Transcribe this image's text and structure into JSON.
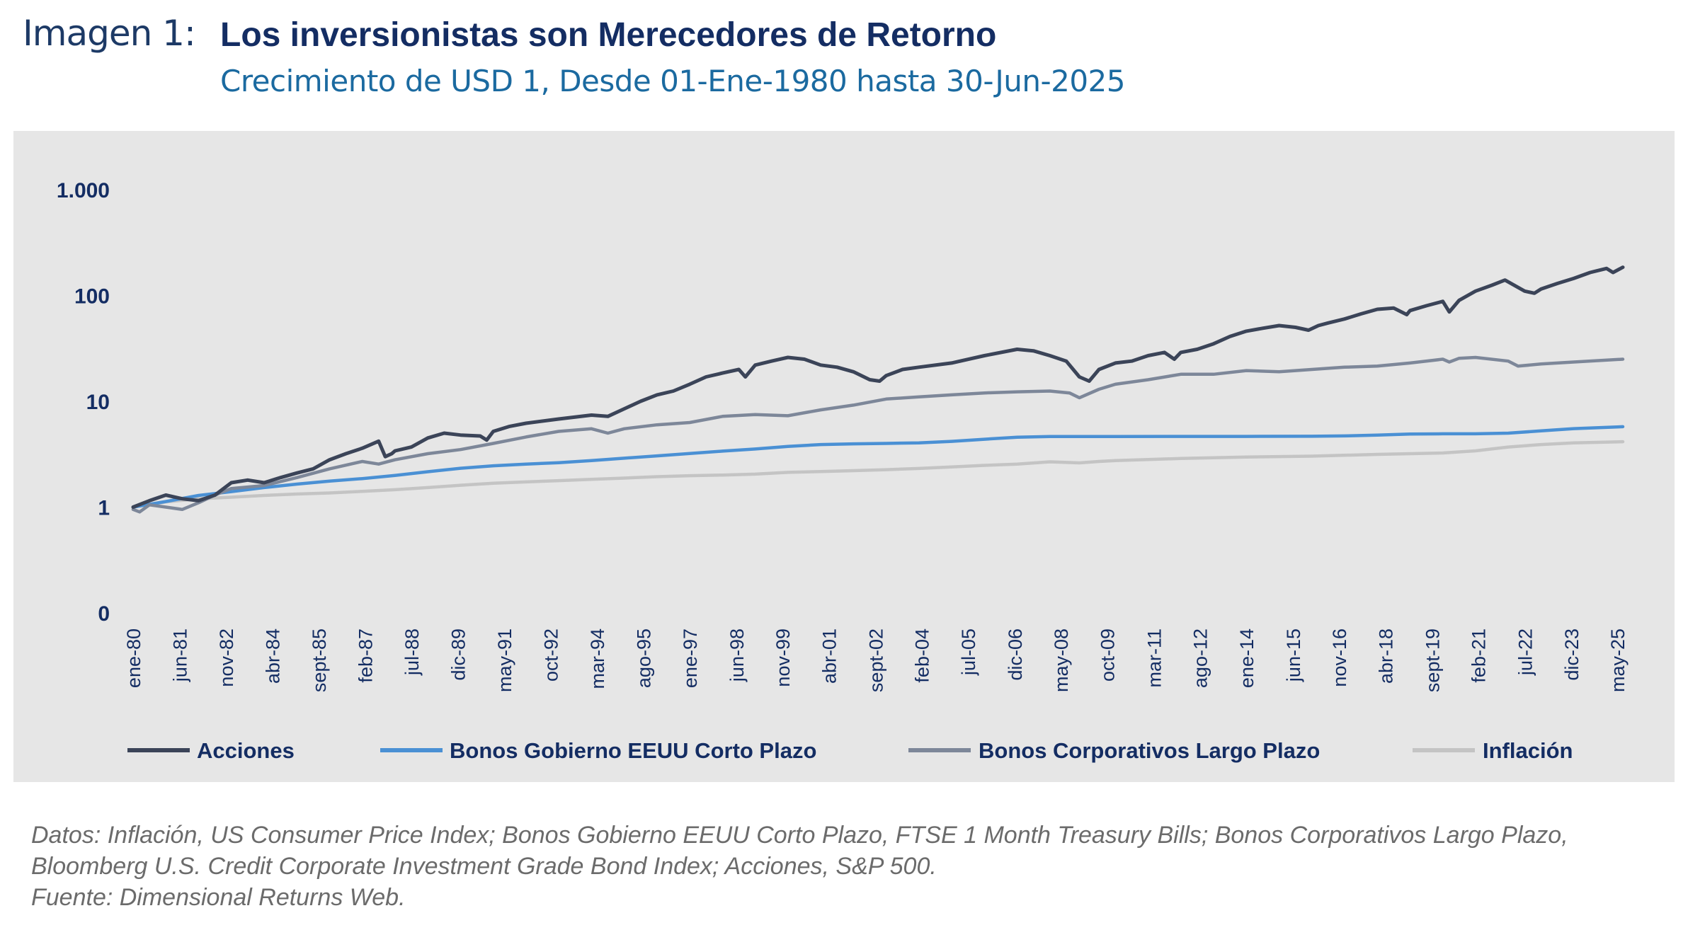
{
  "header": {
    "label": "Imagen 1:",
    "title": "Los inversionistas son Merecedores de Retorno",
    "subtitle": "Crecimiento de USD 1, Desde 01-Ene-1980 hasta 30-Jun-2025"
  },
  "source": {
    "line1": "Datos: Inflación, US Consumer Price Index; Bonos Gobierno EEUU Corto Plazo, FTSE 1 Month Treasury Bills; Bonos Corporativos Largo Plazo, Bloomberg U.S. Credit Corporate Investment Grade Bond Index; Acciones, S&P 500.",
    "line2": "Fuente: Dimensional Returns Web."
  },
  "colors": {
    "panel_background": "#e6e6e6",
    "axis_text": "#142d63"
  },
  "chart_data": {
    "type": "line",
    "title": "",
    "xlabel": "",
    "ylabel": "",
    "yscale": "log",
    "ylim": [
      0.1,
      1000
    ],
    "y_tick_values": [
      0.1,
      1,
      10,
      100,
      1000
    ],
    "y_tick_labels": [
      "0",
      "1",
      "10",
      "100",
      "1.000"
    ],
    "x_range": [
      1980.0,
      2025.5
    ],
    "x_tick_labels": [
      "ene-80",
      "jun-81",
      "nov-82",
      "abr-84",
      "sept-85",
      "feb-87",
      "jul-88",
      "dic-89",
      "may-91",
      "oct-92",
      "mar-94",
      "ago-95",
      "ene-97",
      "jun-98",
      "nov-99",
      "abr-01",
      "sept-02",
      "feb-04",
      "jul-05",
      "dic-06",
      "may-08",
      "oct-09",
      "mar-11",
      "ago-12",
      "ene-14",
      "jun-15",
      "nov-16",
      "abr-18",
      "sept-19",
      "feb-21",
      "jul-22",
      "dic-23",
      "may-25"
    ],
    "x_tick_values": [
      1980.0,
      1981.42,
      1982.83,
      1984.25,
      1985.67,
      1987.08,
      1988.5,
      1989.92,
      1991.33,
      1992.75,
      1994.17,
      1995.58,
      1997.0,
      1998.42,
      1999.83,
      2001.25,
      2002.67,
      2004.08,
      2005.5,
      2006.92,
      2008.33,
      2009.75,
      2011.17,
      2012.58,
      2014.0,
      2015.42,
      2016.83,
      2018.25,
      2019.67,
      2021.08,
      2022.5,
      2023.92,
      2025.33
    ],
    "grid": false,
    "legend_position": "bottom",
    "series": [
      {
        "name": "Acciones",
        "color": "#3b4458",
        "x": [
          1980.0,
          1980.5,
          1981.0,
          1981.5,
          1982.0,
          1982.5,
          1983.0,
          1983.5,
          1984.0,
          1984.5,
          1985.0,
          1985.5,
          1986.0,
          1986.5,
          1987.0,
          1987.5,
          1987.7,
          1987.9,
          1988.0,
          1988.5,
          1989.0,
          1989.5,
          1990.0,
          1990.6,
          1990.8,
          1991.0,
          1991.5,
          1992.0,
          1993.0,
          1994.0,
          1994.5,
          1995.0,
          1995.5,
          1996.0,
          1996.5,
          1997.0,
          1997.5,
          1998.0,
          1998.5,
          1998.7,
          1999.0,
          1999.5,
          2000.0,
          2000.5,
          2001.0,
          2001.5,
          2002.0,
          2002.5,
          2002.8,
          2003.0,
          2003.5,
          2004.0,
          2005.0,
          2006.0,
          2007.0,
          2007.5,
          2008.0,
          2008.5,
          2008.9,
          2009.2,
          2009.5,
          2010.0,
          2010.5,
          2011.0,
          2011.5,
          2011.8,
          2012.0,
          2012.5,
          2013.0,
          2013.5,
          2014.0,
          2014.5,
          2015.0,
          2015.5,
          2015.9,
          2016.2,
          2016.5,
          2017.0,
          2017.5,
          2018.0,
          2018.5,
          2018.9,
          2019.0,
          2019.5,
          2020.0,
          2020.2,
          2020.5,
          2021.0,
          2021.5,
          2021.9,
          2022.5,
          2022.8,
          2023.0,
          2023.5,
          2024.0,
          2024.5,
          2025.0,
          2025.2,
          2025.5
        ],
        "values": [
          1.0,
          1.15,
          1.3,
          1.2,
          1.15,
          1.3,
          1.7,
          1.8,
          1.7,
          1.9,
          2.1,
          2.3,
          2.8,
          3.2,
          3.6,
          4.2,
          3.0,
          3.2,
          3.4,
          3.7,
          4.5,
          5.0,
          4.8,
          4.7,
          4.3,
          5.2,
          5.8,
          6.2,
          6.8,
          7.4,
          7.2,
          8.5,
          10.0,
          11.5,
          12.5,
          14.5,
          17.0,
          18.5,
          20.0,
          17.0,
          22.0,
          24.0,
          26.0,
          25.0,
          22.0,
          21.0,
          19.0,
          16.0,
          15.5,
          17.5,
          20.0,
          21.0,
          23.0,
          27.0,
          31.0,
          30.0,
          27.0,
          24.0,
          17.0,
          15.5,
          20.0,
          23.0,
          24.0,
          27.0,
          29.0,
          25.0,
          29.0,
          31.0,
          35.0,
          41.0,
          46.0,
          49.0,
          52.0,
          50.0,
          47.0,
          52.0,
          55.0,
          60.0,
          67.0,
          74.0,
          76.0,
          66.0,
          72.0,
          80.0,
          88.0,
          70.0,
          90.0,
          110.0,
          125.0,
          140.0,
          110.0,
          105.0,
          115.0,
          130.0,
          145.0,
          165.0,
          180.0,
          165.0,
          185.0
        ]
      },
      {
        "name": "Bonos Gobierno EEUU Corto Plazo",
        "color": "#4a90d4",
        "x": [
          1980.0,
          1981.0,
          1982.0,
          1983.0,
          1984.0,
          1985.0,
          1986.0,
          1987.0,
          1988.0,
          1989.0,
          1990.0,
          1991.0,
          1992.0,
          1993.0,
          1994.0,
          1995.0,
          1996.0,
          1997.0,
          1998.0,
          1999.0,
          2000.0,
          2001.0,
          2002.0,
          2003.0,
          2004.0,
          2005.0,
          2006.0,
          2007.0,
          2008.0,
          2009.0,
          2010.0,
          2012.0,
          2014.0,
          2016.0,
          2017.0,
          2018.0,
          2019.0,
          2020.0,
          2021.0,
          2022.0,
          2023.0,
          2024.0,
          2025.5
        ],
        "values": [
          1.0,
          1.13,
          1.29,
          1.4,
          1.53,
          1.65,
          1.76,
          1.86,
          1.99,
          2.16,
          2.33,
          2.46,
          2.55,
          2.63,
          2.75,
          2.9,
          3.05,
          3.21,
          3.38,
          3.54,
          3.75,
          3.9,
          3.96,
          4.0,
          4.05,
          4.18,
          4.38,
          4.58,
          4.65,
          4.65,
          4.65,
          4.66,
          4.66,
          4.67,
          4.71,
          4.79,
          4.9,
          4.93,
          4.93,
          5.0,
          5.25,
          5.52,
          5.75
        ]
      },
      {
        "name": "Bonos Corporativos Largo Plazo",
        "color": "#7d8799",
        "x": [
          1980.0,
          1980.2,
          1980.5,
          1981.0,
          1981.5,
          1982.0,
          1982.5,
          1983.0,
          1984.0,
          1985.0,
          1986.0,
          1987.0,
          1987.5,
          1988.0,
          1989.0,
          1990.0,
          1991.0,
          1992.0,
          1993.0,
          1994.0,
          1994.5,
          1995.0,
          1996.0,
          1997.0,
          1998.0,
          1999.0,
          2000.0,
          2001.0,
          2002.0,
          2003.0,
          2004.0,
          2005.0,
          2006.0,
          2007.0,
          2008.0,
          2008.6,
          2008.9,
          2009.5,
          2010.0,
          2011.0,
          2012.0,
          2013.0,
          2014.0,
          2015.0,
          2016.0,
          2017.0,
          2018.0,
          2019.0,
          2020.0,
          2020.2,
          2020.5,
          2021.0,
          2022.0,
          2022.3,
          2023.0,
          2024.0,
          2025.5
        ],
        "values": [
          0.95,
          0.9,
          1.05,
          1.0,
          0.95,
          1.1,
          1.3,
          1.5,
          1.6,
          1.9,
          2.3,
          2.7,
          2.55,
          2.8,
          3.2,
          3.5,
          4.0,
          4.6,
          5.2,
          5.5,
          5.0,
          5.5,
          6.0,
          6.3,
          7.2,
          7.5,
          7.3,
          8.3,
          9.2,
          10.5,
          11.0,
          11.5,
          12.0,
          12.3,
          12.5,
          12.0,
          10.8,
          13.0,
          14.5,
          16.0,
          18.0,
          18.0,
          19.5,
          19.0,
          20.0,
          21.0,
          21.5,
          23.0,
          25.0,
          23.5,
          25.5,
          26.0,
          24.0,
          21.5,
          22.5,
          23.5,
          25.0
        ]
      },
      {
        "name": "Inflación",
        "color": "#c4c4c4",
        "x": [
          1980.0,
          1981.0,
          1982.0,
          1983.0,
          1984.0,
          1985.0,
          1986.0,
          1987.0,
          1988.0,
          1989.0,
          1990.0,
          1991.0,
          1992.0,
          1993.0,
          1994.0,
          1995.0,
          1996.0,
          1997.0,
          1998.0,
          1999.0,
          2000.0,
          2001.0,
          2002.0,
          2003.0,
          2004.0,
          2005.0,
          2006.0,
          2007.0,
          2008.0,
          2008.9,
          2009.5,
          2010.0,
          2012.0,
          2014.0,
          2016.0,
          2018.0,
          2020.0,
          2021.0,
          2022.0,
          2023.0,
          2024.0,
          2025.5
        ],
        "values": [
          1.0,
          1.12,
          1.2,
          1.24,
          1.29,
          1.33,
          1.36,
          1.41,
          1.46,
          1.53,
          1.61,
          1.68,
          1.73,
          1.78,
          1.83,
          1.88,
          1.94,
          1.98,
          2.01,
          2.05,
          2.13,
          2.17,
          2.21,
          2.26,
          2.32,
          2.4,
          2.48,
          2.55,
          2.68,
          2.62,
          2.7,
          2.75,
          2.88,
          2.97,
          3.03,
          3.15,
          3.25,
          3.4,
          3.7,
          3.9,
          4.05,
          4.15
        ]
      }
    ]
  }
}
